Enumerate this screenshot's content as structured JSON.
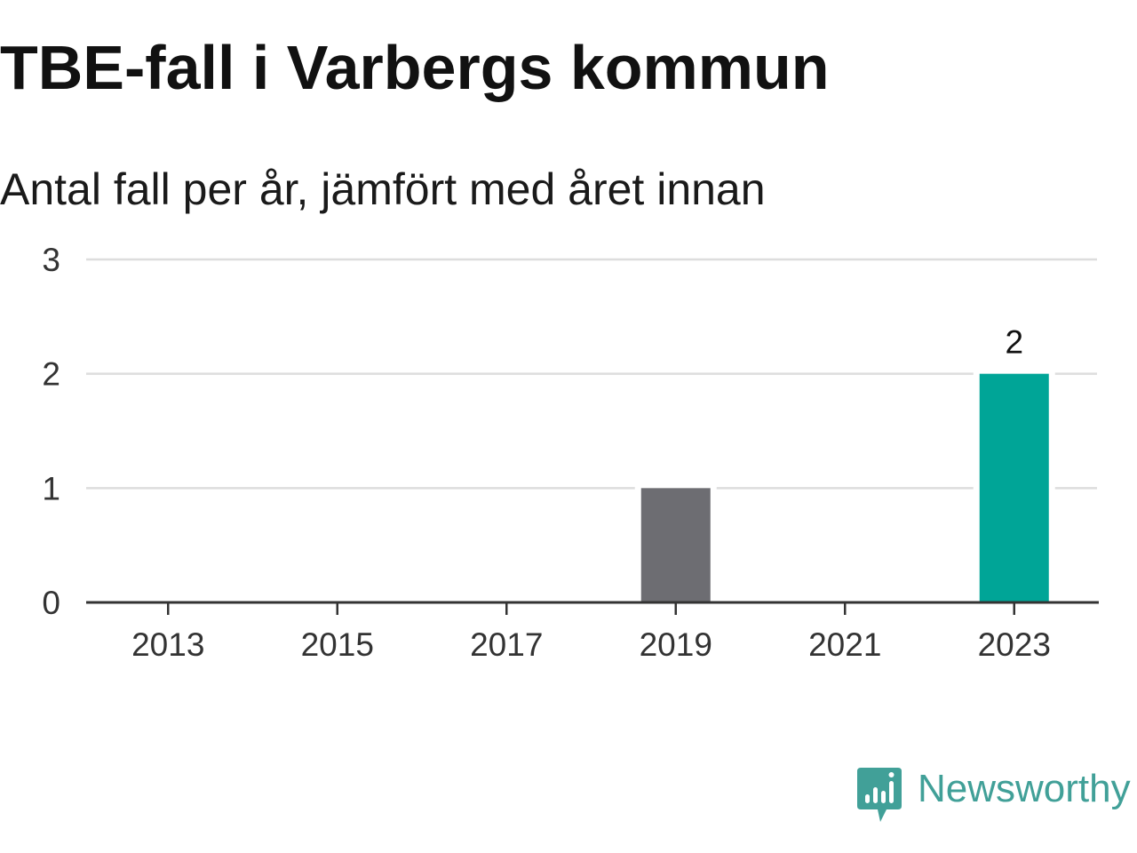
{
  "chart_data": {
    "type": "bar",
    "title": "TBE-fall i Varbergs kommun",
    "subtitle": "Antal fall per år, jämfört med året innan",
    "x": [
      2013,
      2014,
      2015,
      2016,
      2017,
      2018,
      2019,
      2020,
      2021,
      2022,
      2023
    ],
    "values": [
      0,
      0,
      0,
      0,
      0,
      0,
      1,
      0,
      0,
      0,
      2
    ],
    "bar_colors": [
      "#6d6d72",
      "#6d6d72",
      "#6d6d72",
      "#6d6d72",
      "#6d6d72",
      "#6d6d72",
      "#6d6d72",
      "#6d6d72",
      "#6d6d72",
      "#6d6d72",
      "#00a597"
    ],
    "data_labels": [
      {
        "x": 2023,
        "text": "2"
      }
    ],
    "xlim": [
      2012,
      2024
    ],
    "ylim": [
      0,
      3
    ],
    "x_ticks": [
      2013,
      2015,
      2017,
      2019,
      2021,
      2023
    ],
    "y_ticks": [
      0,
      1,
      2,
      3
    ],
    "grid": true
  },
  "branding": {
    "logo_text": "Newsworthy",
    "logo_icon": "bar-chart-bubble-icon",
    "color": "#41a098"
  }
}
